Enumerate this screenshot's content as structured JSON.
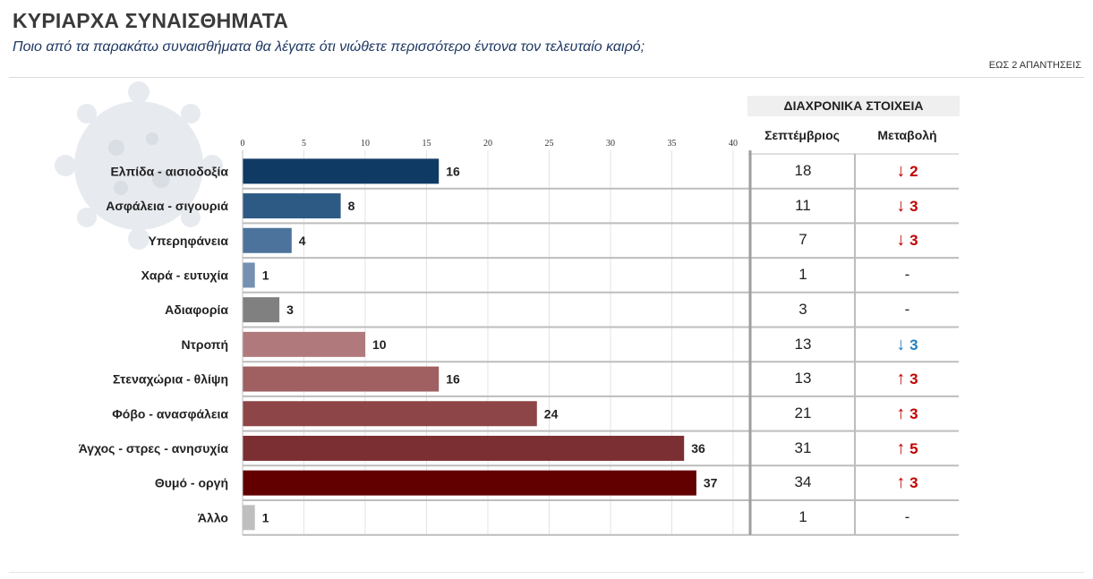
{
  "header": {
    "title": "ΚΥΡΙΑΡΧΑ ΣΥΝΑΙΣΘΗΜΑΤΑ",
    "subtitle": "Ποιο από τα παρακάτω συναισθήματα θα λέγατε ότι νιώθετε περισσότερο έντονα τον τελευταίο καιρό;",
    "note": "ΕΩΣ 2 ΑΠΑΝΤΗΣΕΙΣ"
  },
  "chart_data": {
    "type": "bar",
    "orientation": "horizontal",
    "categories": [
      "Ελπίδα - αισιοδοξία",
      "Ασφάλεια - σιγουριά",
      "Υπερηφάνεια",
      "Χαρά - ευτυχία",
      "Αδιαφορία",
      "Ντροπή",
      "Στεναχώρια - θλίψη",
      "Φόβο - ανασφάλεια",
      "Άγχος - στρες - ανησυχία",
      "Θυμό - οργή",
      "Άλλο"
    ],
    "values": [
      16,
      8,
      4,
      1,
      3,
      10,
      16,
      24,
      36,
      37,
      1
    ],
    "colors": [
      "#0f3a64",
      "#2d5a85",
      "#4c739b",
      "#7590b0",
      "#808080",
      "#b07a7c",
      "#a05f60",
      "#8e4547",
      "#7c2f33",
      "#620000",
      "#bfbfbf"
    ],
    "xlim": [
      0,
      40
    ],
    "xticks": [
      0,
      5,
      10,
      15,
      20,
      25,
      30,
      35,
      40
    ],
    "grid": true,
    "historical": {
      "header": "ΔΙΑΧΡΟΝΙΚΑ ΣΤΟΙΧΕΙΑ",
      "col_prev": "Σεπτέμβριος",
      "col_change": "Μεταβολή",
      "prev_values": [
        18,
        11,
        7,
        1,
        3,
        13,
        13,
        21,
        31,
        34,
        1
      ],
      "changes": [
        {
          "dir": "down",
          "value": "2",
          "color": "#c00000"
        },
        {
          "dir": "down",
          "value": "3",
          "color": "#c00000"
        },
        {
          "dir": "down",
          "value": "3",
          "color": "#c00000"
        },
        {
          "dir": "none",
          "value": "-",
          "color": "#222222"
        },
        {
          "dir": "none",
          "value": "-",
          "color": "#222222"
        },
        {
          "dir": "down",
          "value": "3",
          "color": "#1f7fc0"
        },
        {
          "dir": "up",
          "value": "3",
          "color": "#c00000"
        },
        {
          "dir": "up",
          "value": "3",
          "color": "#c00000"
        },
        {
          "dir": "up",
          "value": "5",
          "color": "#c00000"
        },
        {
          "dir": "up",
          "value": "3",
          "color": "#c00000"
        },
        {
          "dir": "none",
          "value": "-",
          "color": "#222222"
        }
      ]
    }
  }
}
